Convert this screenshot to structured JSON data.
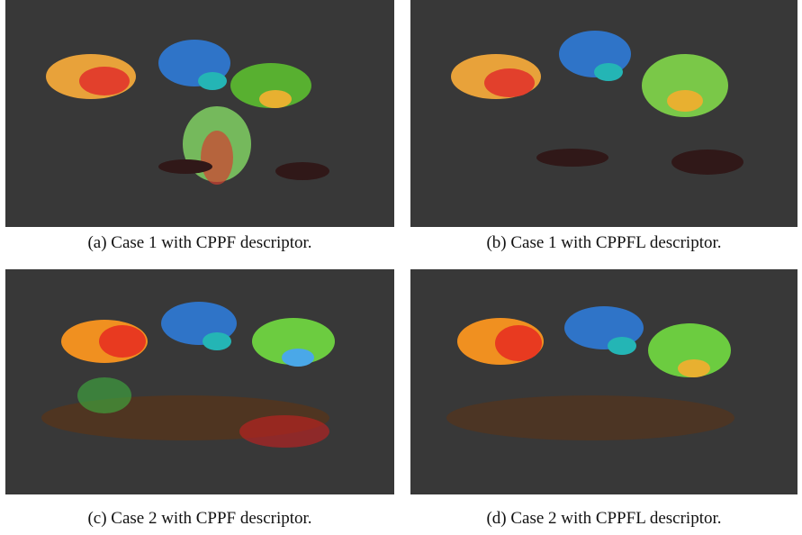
{
  "figure": {
    "panels": [
      {
        "caption": "(a) Case 1 with CPPF descriptor."
      },
      {
        "caption": "(b) Case 1 with CPPFL descriptor."
      },
      {
        "caption": "(c) Case 2 with CPPF descriptor."
      },
      {
        "caption": "(d) Case 2 with CPPFL descriptor."
      }
    ]
  }
}
